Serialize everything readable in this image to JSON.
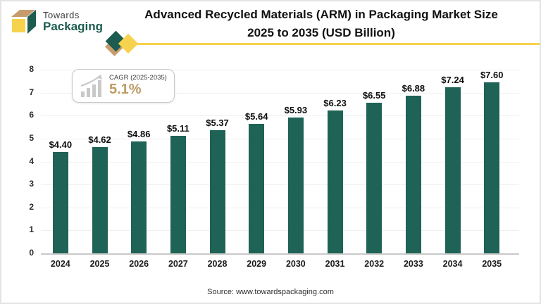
{
  "brand": {
    "name_line1": "Towards",
    "name_line2": "Packaging",
    "colors": {
      "green": "#1d5c50",
      "yellow": "#f6d24e",
      "tan": "#c69c6d"
    }
  },
  "header": {
    "title_line1": "Advanced Recycled Materials (ARM) in Packaging Market Size",
    "title_line2": "2025 to 2035 (USD Billion)"
  },
  "cagr_badge": {
    "label": "CAGR (2025-2035)",
    "value": "5.1%",
    "value_color": "#be9b62"
  },
  "source": "Source: www.towardspackaging.com",
  "chart_data": {
    "type": "bar",
    "title": "Advanced Recycled Materials (ARM) in Packaging Market Size 2025 to 2035 (USD Billion)",
    "categories": [
      "2024",
      "2025",
      "2026",
      "2027",
      "2028",
      "2029",
      "2030",
      "2031",
      "2032",
      "2033",
      "2034",
      "2035"
    ],
    "values": [
      4.4,
      4.62,
      4.86,
      5.11,
      5.37,
      5.64,
      5.93,
      6.23,
      6.55,
      6.88,
      7.24,
      7.6
    ],
    "value_labels": [
      "$4.40",
      "$4.62",
      "$4.86",
      "$5.11",
      "$5.37",
      "$5.64",
      "$5.93",
      "$6.23",
      "$6.55",
      "$6.88",
      "$7.24",
      "$7.60"
    ],
    "xlabel": "",
    "ylabel": "",
    "ylim": [
      0,
      8
    ],
    "yticks": [
      0,
      1,
      2,
      3,
      4,
      5,
      6,
      7,
      8
    ],
    "grid": true,
    "legend": false,
    "bar_color": "#1e6355",
    "unit": "USD Billion"
  }
}
